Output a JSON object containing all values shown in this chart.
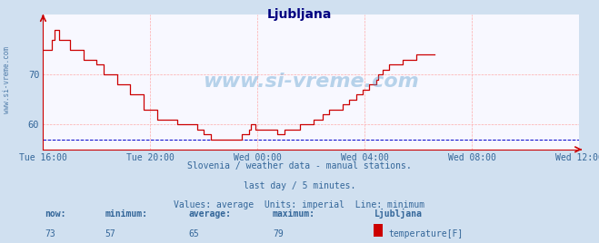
{
  "title": "Ljubljana",
  "title_color": "#000080",
  "bg_color": "#d0e0f0",
  "plot_bg_color": "#f8f8ff",
  "grid_color": "#ffaaaa",
  "axis_color": "#cc0000",
  "line_color": "#cc0000",
  "min_line_color": "#0000cc",
  "ylabel_color": "#336699",
  "xlabel_color": "#336699",
  "watermark": "www.si-vreme.com",
  "subtitle1": "Slovenia / weather data - manual stations.",
  "subtitle2": "last day / 5 minutes.",
  "subtitle3": "Values: average  Units: imperial  Line: minimum",
  "subtitle_color": "#336699",
  "xticklabels": [
    "Tue 16:00",
    "Tue 20:00",
    "Wed 00:00",
    "Wed 04:00",
    "Wed 08:00",
    "Wed 12:00"
  ],
  "xtick_positions": [
    0,
    48,
    96,
    144,
    192,
    240
  ],
  "ytick_vals": [
    60,
    70
  ],
  "ylim": [
    55,
    82
  ],
  "xlim": [
    0,
    240
  ],
  "now_label": "now:",
  "now_val": "73",
  "min_label": "minimum:",
  "min_val": "57",
  "avg_label": "average:",
  "avg_val": "65",
  "max_label": "maximum:",
  "max_val": "79",
  "station_label": "Ljubljana",
  "series_label": "temperature[F]",
  "legend_color": "#cc0000",
  "left_label": "www.si-vreme.com",
  "left_label_color": "#336699",
  "data_x": [
    0,
    1,
    2,
    3,
    4,
    5,
    6,
    7,
    8,
    9,
    10,
    11,
    12,
    13,
    14,
    15,
    16,
    17,
    18,
    19,
    20,
    21,
    22,
    23,
    24,
    25,
    26,
    27,
    28,
    29,
    30,
    31,
    32,
    33,
    34,
    35,
    36,
    37,
    38,
    39,
    40,
    41,
    42,
    43,
    44,
    45,
    46,
    47,
    48,
    49,
    50,
    51,
    52,
    53,
    54,
    55,
    56,
    57,
    58,
    59,
    60,
    61,
    62,
    63,
    64,
    65,
    66,
    67,
    68,
    69,
    70,
    71,
    72,
    73,
    74,
    75,
    76,
    77,
    78,
    79,
    80,
    81,
    82,
    83,
    84,
    85,
    86,
    87,
    88,
    89,
    90,
    91,
    92,
    93,
    94,
    95,
    96,
    97,
    98,
    99,
    100,
    101,
    102,
    103,
    104,
    105,
    106,
    107,
    108,
    109,
    110,
    111,
    112,
    113,
    114,
    115,
    116,
    117,
    118,
    119,
    120,
    121,
    122,
    123,
    124,
    125,
    126,
    127,
    128,
    129,
    130,
    131,
    132,
    133,
    134,
    135,
    136,
    137,
    138,
    139,
    140,
    141,
    142,
    143,
    144,
    145,
    146,
    147,
    148,
    149,
    150,
    151,
    152,
    153,
    154,
    155,
    156,
    157,
    158,
    159,
    160,
    161,
    162,
    163,
    164,
    165,
    166,
    167,
    168,
    169,
    170,
    171,
    172,
    173,
    174,
    175
  ],
  "data_y": [
    75,
    75,
    75,
    75,
    77,
    79,
    79,
    77,
    77,
    77,
    77,
    77,
    75,
    75,
    75,
    75,
    75,
    75,
    73,
    73,
    73,
    73,
    73,
    73,
    72,
    72,
    72,
    70,
    70,
    70,
    70,
    70,
    70,
    68,
    68,
    68,
    68,
    68,
    68,
    66,
    66,
    66,
    66,
    66,
    66,
    63,
    63,
    63,
    63,
    63,
    63,
    61,
    61,
    61,
    61,
    61,
    61,
    61,
    61,
    61,
    60,
    60,
    60,
    60,
    60,
    60,
    60,
    60,
    60,
    59,
    59,
    59,
    58,
    58,
    58,
    57,
    57,
    57,
    57,
    57,
    57,
    57,
    57,
    57,
    57,
    57,
    57,
    57,
    57,
    58,
    58,
    58,
    59,
    60,
    60,
    59,
    59,
    59,
    59,
    59,
    59,
    59,
    59,
    59,
    59,
    58,
    58,
    58,
    59,
    59,
    59,
    59,
    59,
    59,
    59,
    60,
    60,
    60,
    60,
    60,
    60,
    61,
    61,
    61,
    61,
    62,
    62,
    62,
    63,
    63,
    63,
    63,
    63,
    63,
    64,
    64,
    64,
    65,
    65,
    65,
    66,
    66,
    66,
    67,
    67,
    67,
    68,
    68,
    68,
    69,
    70,
    70,
    71,
    71,
    71,
    72,
    72,
    72,
    72,
    72,
    72,
    73,
    73,
    73,
    73,
    73,
    73,
    74,
    74,
    74,
    74,
    74,
    74,
    74,
    74,
    74
  ]
}
